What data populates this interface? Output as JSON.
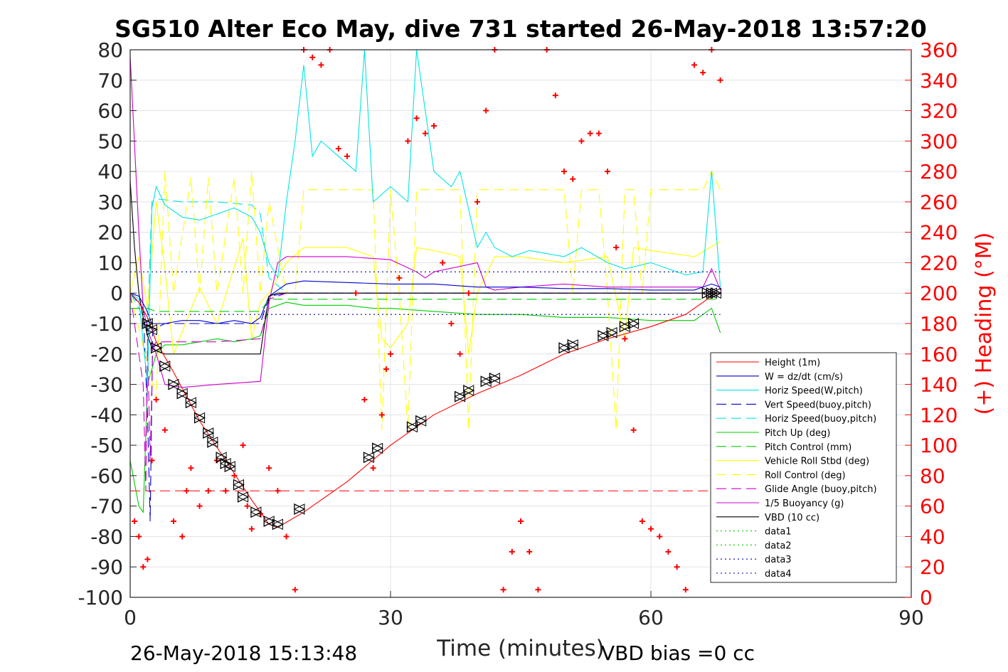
{
  "chart_data": {
    "type": "line",
    "title": "SG510 Alter Eco May, dive 731 started 26-May-2018 13:57:20",
    "xlabel": "Time (minutes)",
    "ylabel": "",
    "ylabel_right": "(+) Heading (°M)",
    "xlim": [
      0,
      90
    ],
    "ylim": [
      -100,
      80
    ],
    "ylim_right": [
      0,
      360
    ],
    "x_ticks": [
      "0",
      "30",
      "60",
      "90"
    ],
    "y_ticks": [
      "80",
      "70",
      "60",
      "50",
      "40",
      "30",
      "20",
      "10",
      "0",
      "-10",
      "-20",
      "-30",
      "-40",
      "-50",
      "-60",
      "-70",
      "-80",
      "-90",
      "-100"
    ],
    "y_ticks_right": [
      "360",
      "340",
      "320",
      "300",
      "280",
      "260",
      "240",
      "220",
      "200",
      "180",
      "160",
      "140",
      "120",
      "100",
      "80",
      "60",
      "40",
      "20",
      "0"
    ],
    "grid": true,
    "legend_position": "bottom-right",
    "footer_left": "26-May-2018 15:13:48",
    "footer_right": "VBD bias =0 cc",
    "colors": {
      "red": "#ff0000",
      "blue": "#0000cc",
      "cyan": "#00e5e5",
      "green": "#00cc00",
      "yellow": "#ffff00",
      "magenta": "#cc00cc",
      "black": "#000000",
      "data1": "#00cc00",
      "data2": "#00cc00",
      "data3": "#000099",
      "data4": "#000099"
    },
    "series": [
      {
        "name": "Height (1m)",
        "color": "red",
        "style": "solid",
        "x": [
          0,
          1,
          2,
          3,
          5,
          8,
          11,
          14,
          16,
          17,
          20,
          25,
          30,
          35,
          40,
          45,
          50,
          55,
          60,
          64,
          66,
          67.5
        ],
        "y": [
          0,
          -3,
          -8,
          -16,
          -26,
          -42,
          -55,
          -68,
          -76,
          -77,
          -72,
          -62,
          -50,
          -40,
          -33,
          -27,
          -20,
          -15,
          -11,
          -7,
          -3,
          0
        ]
      },
      {
        "name": "W = dz/dt (cm/s)",
        "color": "blue",
        "style": "solid",
        "x": [
          0,
          1,
          1.8,
          2.5,
          4,
          6,
          8,
          10,
          12,
          14,
          15,
          16,
          18,
          20,
          25,
          30,
          35,
          40,
          45,
          50,
          55,
          60,
          65,
          67,
          68
        ],
        "y": [
          0,
          -1,
          -5,
          -10,
          -10,
          -9,
          -9,
          -10,
          -9,
          -10,
          -8,
          -1,
          3,
          4,
          3.5,
          3,
          3,
          2,
          2,
          1.5,
          1.5,
          1,
          1,
          3,
          2
        ]
      },
      {
        "name": "Horiz Speed(W,pitch)",
        "color": "cyan",
        "style": "solid",
        "x": [
          0,
          1,
          2,
          2.5,
          3,
          4,
          6,
          8,
          10,
          12,
          14,
          15,
          16,
          17,
          18,
          19,
          20,
          21,
          22,
          24,
          26,
          27,
          28,
          30,
          32,
          33,
          35,
          37,
          38,
          40,
          41,
          42,
          44,
          46,
          50,
          52,
          55,
          57,
          60,
          62,
          64,
          66,
          67,
          68
        ],
        "y": [
          0,
          -2,
          -30,
          28,
          35,
          29,
          25,
          24,
          26,
          28,
          25,
          20,
          10,
          5,
          30,
          50,
          75,
          45,
          50,
          45,
          40,
          80,
          30,
          35,
          30,
          80,
          40,
          35,
          40,
          15,
          20,
          15,
          12,
          14,
          12,
          15,
          10,
          8,
          10,
          8,
          6,
          7,
          40,
          2
        ]
      },
      {
        "name": "Vert Speed(buoy,pitch)",
        "color": "blue",
        "style": "dashed",
        "x": [
          0,
          1.5,
          2,
          2.3,
          2.6,
          4,
          8,
          12,
          15,
          16,
          18,
          25,
          35,
          45,
          55,
          65,
          68
        ],
        "y": [
          0,
          -5,
          -40,
          -75,
          -12,
          -10,
          -10,
          -10,
          -10,
          -1,
          0,
          0,
          0,
          0,
          0,
          0,
          0
        ]
      },
      {
        "name": "Horiz Speed(buoy,pitch)",
        "color": "cyan",
        "style": "dashed",
        "x": [
          0,
          2,
          2.5,
          3,
          6,
          10,
          14,
          15,
          16,
          18,
          30,
          40,
          50,
          60,
          68
        ],
        "y": [
          0,
          -10,
          30,
          31,
          30,
          30,
          29,
          26,
          5,
          0,
          0,
          0,
          0,
          0,
          0
        ]
      },
      {
        "name": "Pitch Up (deg)",
        "color": "green",
        "style": "solid",
        "x": [
          0,
          1,
          1.5,
          2,
          3,
          4,
          6,
          8,
          10,
          12,
          14,
          15,
          16,
          18,
          20,
          25,
          28,
          30,
          35,
          40,
          45,
          50,
          55,
          60,
          65,
          67,
          68
        ],
        "y": [
          -55,
          -70,
          -72,
          -30,
          -20,
          -17,
          -17,
          -16,
          -15,
          -16,
          -15,
          -14,
          -5,
          -3,
          -4,
          -4,
          -5,
          -5,
          -6,
          -7,
          -7,
          -8,
          -8,
          -9,
          -9,
          -5,
          -13
        ]
      },
      {
        "name": "Pitch Control (mm)",
        "color": "green",
        "style": "dashed",
        "x": [
          0,
          2,
          3,
          15,
          16,
          17,
          68
        ],
        "y": [
          -5,
          -5,
          -6,
          -6,
          -2,
          -2,
          -2
        ]
      },
      {
        "name": "Vehicle Roll Stbd (deg)",
        "color": "yellow",
        "style": "solid",
        "x": [
          0,
          1,
          2,
          3,
          4,
          5,
          8,
          10,
          13,
          14,
          15,
          16,
          18,
          20,
          25,
          28,
          29,
          30,
          32,
          33,
          35,
          38,
          39,
          40,
          42,
          45,
          50,
          55,
          57,
          58,
          60,
          65,
          68
        ],
        "y": [
          0,
          12,
          -5,
          30,
          8,
          -20,
          2,
          -10,
          18,
          -15,
          -3,
          0,
          10,
          15,
          15,
          12,
          -15,
          -18,
          -10,
          15,
          14,
          12,
          -20,
          0,
          12,
          12,
          10,
          12,
          -15,
          15,
          14,
          12,
          17
        ]
      },
      {
        "name": "Roll Control (deg)",
        "color": "yellow",
        "style": "dashed",
        "x": [
          0,
          3,
          4,
          5,
          7,
          8,
          9,
          10,
          12,
          13,
          14,
          15,
          16,
          18,
          19,
          20,
          28,
          29,
          30,
          31,
          32,
          33,
          38,
          39,
          40,
          41,
          42,
          50,
          51,
          52,
          54,
          55,
          56,
          57,
          58,
          59,
          60,
          66,
          67,
          68
        ],
        "y": [
          0,
          -35,
          40,
          0,
          38,
          0,
          38,
          0,
          38,
          0,
          40,
          0,
          30,
          0,
          0,
          34,
          34,
          -45,
          34,
          0,
          -45,
          34,
          34,
          -45,
          34,
          34,
          34,
          34,
          0,
          34,
          34,
          0,
          -45,
          34,
          34,
          0,
          34,
          34,
          40,
          34
        ]
      },
      {
        "name": "Glide Angle (buoy,pitch)",
        "color": "magenta",
        "style": "dashed",
        "x": [
          0,
          1.5,
          1.8,
          2,
          2.3,
          2.6,
          3,
          5,
          10,
          15,
          16,
          18,
          30,
          68
        ],
        "y": [
          0,
          -30,
          -65,
          -15,
          -55,
          -18,
          -16,
          -16,
          -16,
          -15,
          -2,
          0,
          0,
          0
        ]
      },
      {
        "name": "1/5 Buoyancy (g)",
        "color": "magenta",
        "style": "solid",
        "x": [
          0,
          1,
          1.5,
          2,
          3,
          4,
          6,
          10,
          15,
          16,
          17,
          18,
          20,
          25,
          30,
          33,
          34,
          35,
          40,
          41,
          42,
          45,
          50,
          55,
          60,
          66,
          67,
          68
        ],
        "y": [
          78,
          20,
          -5,
          -12,
          -20,
          -30,
          -31,
          -30,
          -29,
          -3,
          10,
          12,
          12,
          12,
          11,
          7,
          5,
          7,
          10,
          2,
          1,
          2,
          3,
          2,
          2,
          2,
          8,
          1
        ]
      },
      {
        "name": "VBD (10 cc)",
        "color": "black",
        "style": "solid",
        "x": [
          0,
          0.5,
          1,
          1.5,
          2,
          2.5,
          3,
          4,
          15,
          15.5,
          16,
          17,
          30,
          67,
          68
        ],
        "y": [
          37,
          15,
          0,
          -8,
          -14,
          -18,
          -19,
          -20,
          -20,
          -10,
          -1,
          0,
          0,
          0,
          0
        ]
      },
      {
        "name": "data1",
        "color": "data1",
        "style": "dotted",
        "x": [
          0,
          90
        ],
        "y": [
          -100,
          -100
        ]
      },
      {
        "name": "data2",
        "color": "data2",
        "style": "dotted",
        "x": [
          0,
          90
        ],
        "y": [
          -100,
          -100
        ]
      },
      {
        "name": "data3",
        "color": "data3",
        "style": "dotted",
        "x": [
          0,
          68
        ],
        "y": [
          7,
          7
        ]
      },
      {
        "name": "data4",
        "color": "data4",
        "style": "dotted",
        "x": [
          0,
          68
        ],
        "y": [
          -7,
          -7
        ]
      }
    ],
    "reference_lines": [
      {
        "axis": "y",
        "value": -65,
        "color": "red",
        "style": "dashed",
        "x": [
          0,
          68
        ]
      }
    ],
    "heading": {
      "x": [
        0.5,
        1,
        1.5,
        2,
        2.5,
        3,
        4,
        5,
        6,
        6.5,
        7,
        8,
        9,
        10,
        11,
        12,
        13,
        13.5,
        14,
        15,
        16,
        17,
        18,
        19,
        20,
        21,
        22,
        23,
        24,
        25,
        26,
        27,
        28,
        29,
        29.5,
        30,
        31,
        32,
        33,
        34,
        35,
        36,
        37,
        38,
        39,
        40,
        41,
        42,
        43,
        44,
        45,
        46,
        47,
        48,
        49,
        50,
        51,
        52,
        53,
        54,
        55,
        56,
        57,
        58,
        59,
        60,
        61,
        62,
        63,
        64,
        65,
        66,
        67,
        68
      ],
      "y": [
        50,
        40,
        20,
        25,
        90,
        130,
        110,
        50,
        40,
        70,
        85,
        60,
        70,
        90,
        70,
        80,
        100,
        60,
        45,
        55,
        85,
        70,
        40,
        5,
        360,
        355,
        350,
        360,
        295,
        290,
        200,
        130,
        85,
        120,
        150,
        160,
        210,
        300,
        315,
        305,
        310,
        220,
        180,
        160,
        200,
        260,
        320,
        360,
        5,
        30,
        50,
        30,
        5,
        360,
        330,
        280,
        275,
        300,
        305,
        305,
        280,
        230,
        170,
        110,
        50,
        45,
        40,
        30,
        20,
        5,
        350,
        345,
        360,
        340
      ]
    },
    "markers": {
      "x": [
        2,
        2.5,
        3,
        4,
        5,
        6,
        7,
        8,
        9,
        9.5,
        10.5,
        11,
        11.5,
        12.5,
        13,
        14.5,
        16,
        17,
        19.5,
        27.5,
        28.5,
        32.5,
        33.5,
        38,
        39,
        41,
        42,
        50,
        51,
        54.5,
        55.5,
        57,
        58,
        66.5,
        67,
        67.5
      ],
      "y": [
        -10,
        -12,
        -18,
        -24,
        -30,
        -33,
        -36,
        -41,
        -46,
        -49,
        -54,
        -56,
        -57,
        -63,
        -67,
        -72,
        -75,
        -76,
        -71,
        -54,
        -51,
        -44,
        -42,
        -34,
        -32,
        -29,
        -28,
        -18,
        -17,
        -14,
        -13,
        -11,
        -10,
        0,
        0,
        0
      ]
    }
  }
}
